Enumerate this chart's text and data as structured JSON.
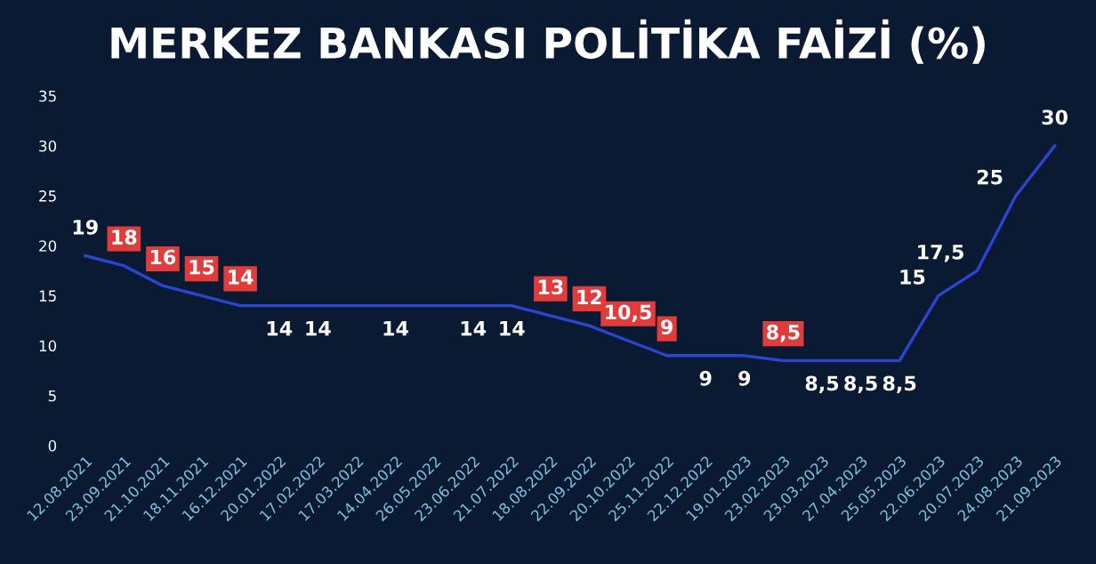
{
  "chart_data": {
    "type": "line",
    "title": "MERKEZ BANKASI POLİTİKA FAİZİ (%)",
    "categories": [
      "12.08.2021",
      "23.09.2021",
      "21.10.2021",
      "18.11.2021",
      "16.12.2021",
      "20.01.2022",
      "17.02.2022",
      "17.03.2022",
      "14.04.2022",
      "26.05.2022",
      "23.06.2022",
      "21.07.2022",
      "18.08.2022",
      "22.09.2022",
      "20.10.2022",
      "25.11.2022",
      "22.12.2022",
      "19.01.2023",
      "23.02.2023",
      "23.03.2023",
      "27.04.2023",
      "25.05.2023",
      "22.06.2023",
      "20.07.2023",
      "24.08.2023",
      "21.09.2023"
    ],
    "series": [
      {
        "color": "#2a45d0",
        "values": [
          19,
          18,
          16,
          15,
          14,
          14,
          14,
          14,
          14,
          14,
          14,
          14,
          13,
          12,
          10.5,
          9,
          9,
          9,
          8.5,
          8.5,
          8.5,
          8.5,
          15,
          17.5,
          25,
          30
        ],
        "value_labels": [
          "19",
          "18",
          "16",
          "15",
          "14",
          "14",
          "14",
          null,
          "14",
          null,
          "14",
          "14",
          "13",
          "12",
          "10,5",
          "9",
          "9",
          "9",
          "8,5",
          "8,5",
          "8,5",
          "8,5",
          "15",
          "17,5",
          "25",
          "30"
        ]
      }
    ],
    "ylim": [
      0,
      35
    ],
    "yticks": [
      0,
      5,
      10,
      15,
      20,
      25,
      30,
      35
    ],
    "grid": false,
    "legend": false,
    "marker": "none",
    "line_style": "solid"
  }
}
